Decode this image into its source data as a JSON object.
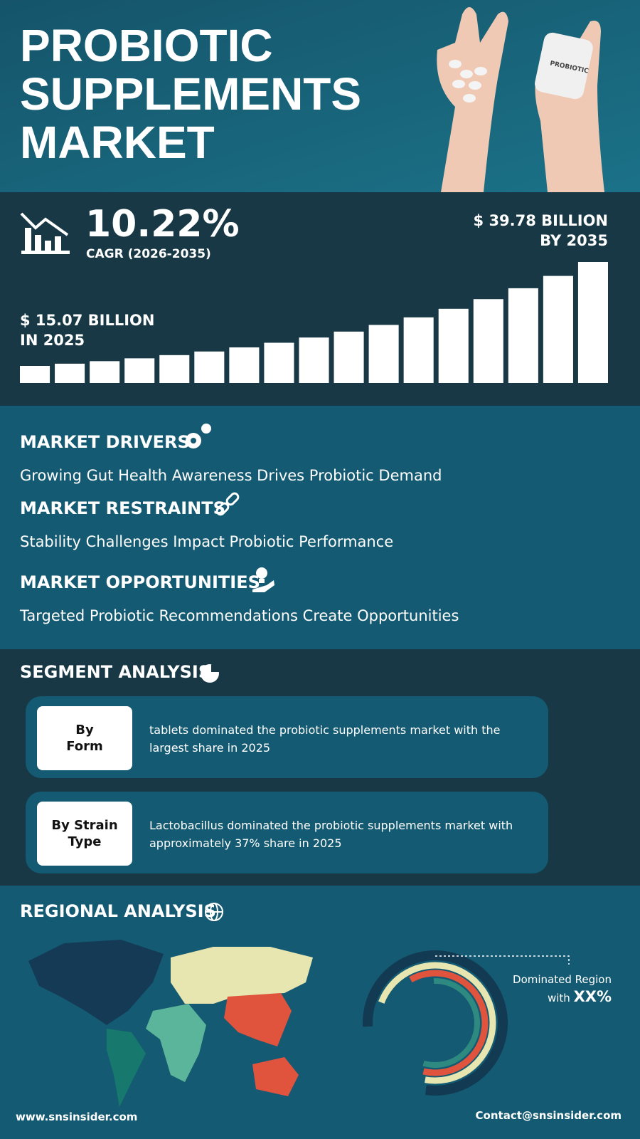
{
  "header": {
    "title_lines": [
      "PROBIOTIC",
      "SUPPLEMENTS",
      "MARKET"
    ],
    "bottle_label": "PROBIOTIC"
  },
  "stats": {
    "cagr": "10.22%",
    "cagr_label": "CAGR (2026-2035)",
    "end_value": [
      "$ 39.78 BILLION",
      "BY 2035"
    ],
    "start_value": [
      "$ 15.07 BILLION",
      "IN 2025"
    ]
  },
  "sections": [
    {
      "heading": "MARKET DRIVERS",
      "text": "Growing Gut Health Awareness Drives Probiotic Demand"
    },
    {
      "heading": "MARKET RESTRAINTS",
      "text": "Stability Challenges Impact Probiotic Performance"
    },
    {
      "heading": "MARKET OPPORTUNITIES",
      "text": "Targeted Probiotic Recommendations Create Opportunities"
    }
  ],
  "segment_analysis": {
    "heading": "SEGMENT ANALYSIS",
    "segments": [
      {
        "label": [
          "By",
          "Form"
        ],
        "text": "tablets dominated the probiotic supplements market with the largest share in 2025"
      },
      {
        "label": [
          "By Strain",
          "Type"
        ],
        "text": "Lactobacillus dominated the probiotic supplements market with approximately 37% share in 2025"
      }
    ]
  },
  "regional_analysis": {
    "heading": "REGIONAL ANALYSIS",
    "callout": "Dominated Region",
    "callout_prefix": "with",
    "callout_value": "XX%"
  },
  "footer": {
    "website": "www.snsinsider.com",
    "contact": "Contact@snsinsider.com"
  }
}
